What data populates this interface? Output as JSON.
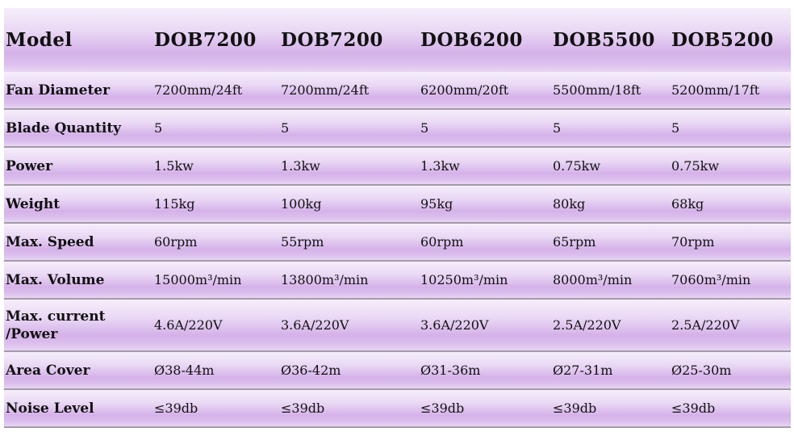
{
  "header": {
    "label": "Model",
    "models": [
      "DOB7200",
      "DOB7200",
      "DOB6200",
      "DOB5500",
      "DOB5200"
    ]
  },
  "rows": [
    {
      "label": "Fan Diameter",
      "values": [
        "7200mm/24ft",
        "7200mm/24ft",
        "6200mm/20ft",
        "5500mm/18ft",
        "5200mm/17ft"
      ]
    },
    {
      "label": "Blade Quantity",
      "values": [
        "5",
        "5",
        "5",
        "5",
        "5"
      ]
    },
    {
      "label": "Power",
      "values": [
        "1.5kw",
        "1.3kw",
        "1.3kw",
        "0.75kw",
        "0.75kw"
      ]
    },
    {
      "label": "Weight",
      "values": [
        "115kg",
        "100kg",
        "95kg",
        "80kg",
        "68kg"
      ]
    },
    {
      "label": "Max. Speed",
      "values": [
        "60rpm",
        "55rpm",
        "60rpm",
        "65rpm",
        "70rpm"
      ]
    },
    {
      "label": "Max. Volume",
      "values": [
        "15000m³/min",
        "13800m³/min",
        "10250m³/min",
        "8000m³/min",
        "7060m³/min"
      ]
    },
    {
      "label": "Max. current /Power",
      "values": [
        "4.6A/220V",
        "3.6A/220V",
        "3.6A/220V",
        "2.5A/220V",
        "2.5A/220V"
      ]
    },
    {
      "label": "Area Cover",
      "values": [
        "Ø38-44m",
        "Ø36-42m",
        "Ø31-36m",
        "Ø27-31m",
        "Ø25-30m"
      ]
    },
    {
      "label": "Noise Level",
      "values": [
        "≤39db",
        "≤39db",
        "≤39db",
        "≤39db",
        "≤39db"
      ]
    }
  ]
}
